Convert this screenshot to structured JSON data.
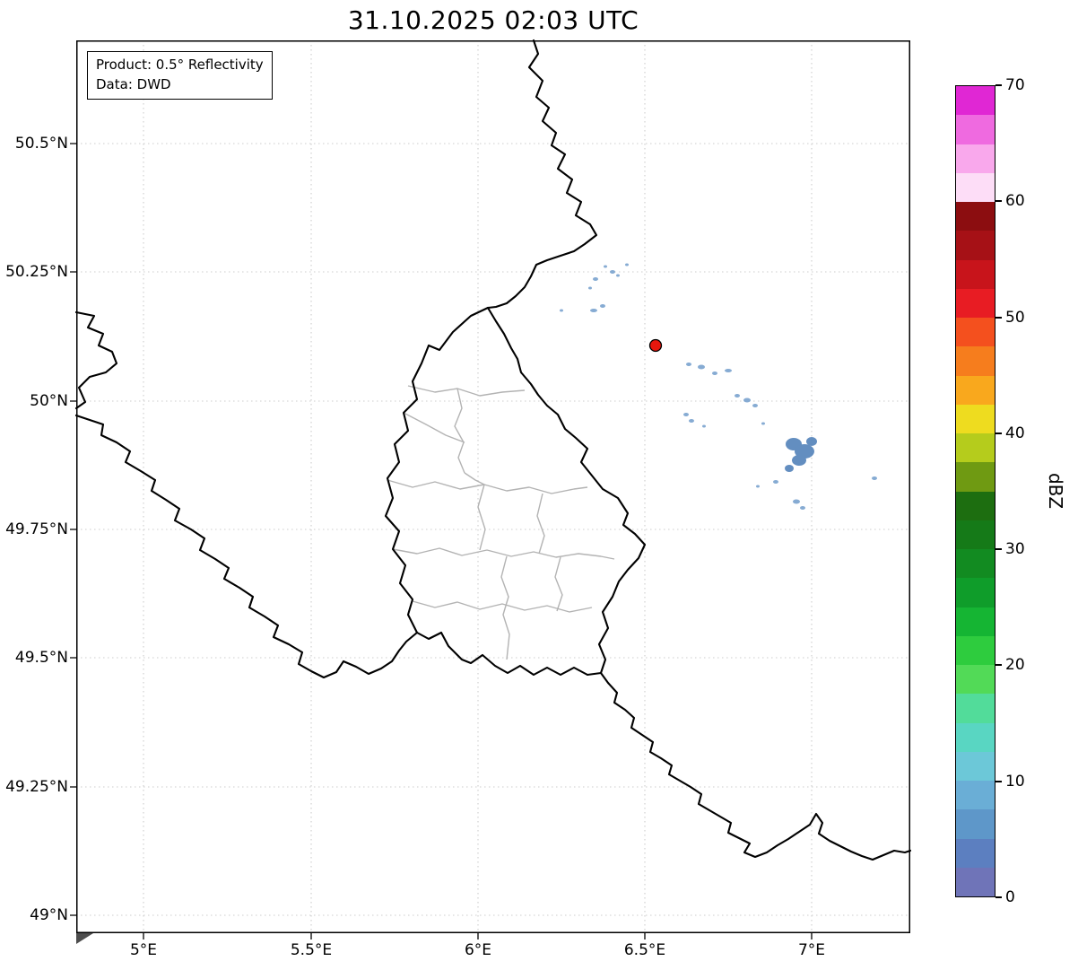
{
  "title": "31.10.2025 02:03 UTC",
  "info_box": {
    "product": "Product: 0.5° Reflectivity",
    "source": "Data: DWD"
  },
  "axes": {
    "lat_ticks": [
      "50.5°N",
      "50.25°N",
      "50°N",
      "49.75°N",
      "49.5°N",
      "49.25°N",
      "49°N"
    ],
    "lon_ticks": [
      "5°E",
      "5.5°E",
      "6°E",
      "6.5°E",
      "7°E"
    ]
  },
  "colorbar": {
    "label": "dBZ",
    "tick_labels_top_to_bottom": [
      "70",
      "60",
      "50",
      "40",
      "30",
      "20",
      "10",
      "0"
    ],
    "value_min": 0,
    "value_max": 70,
    "colors_top_to_bottom": [
      "#e027d4",
      "#ef6ae0",
      "#f9a8ec",
      "#fdddf7",
      "#8c0d10",
      "#a61116",
      "#c8141b",
      "#e81c23",
      "#f4501e",
      "#f67d1d",
      "#f9a81d",
      "#eedc1f",
      "#b5cc1c",
      "#6f9a12",
      "#1d6e10",
      "#157a18",
      "#128b21",
      "#0f9d2a",
      "#15b533",
      "#2ecc3e",
      "#52da57",
      "#52dc9a",
      "#59d6c2",
      "#6cc8d8",
      "#6aaed6",
      "#5e97c9",
      "#5c7fc0",
      "#6f74b8"
    ]
  },
  "map": {
    "country_border_color": "#000000",
    "district_border_color": "#b3b3b3",
    "grid_color": "#cccccc",
    "echo_color": "#7aa3cf",
    "echo_dense_color": "#5b88bd",
    "radar_marker_color": "#e8170d"
  }
}
